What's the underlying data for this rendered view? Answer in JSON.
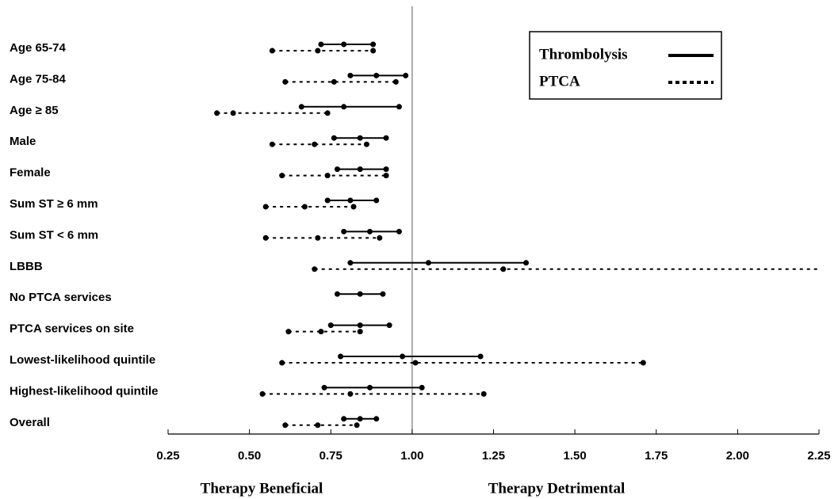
{
  "chart_data": {
    "type": "forest",
    "categories": [
      "Age 65-74",
      "Age 75-84",
      "Age ≥ 85",
      "Male",
      "Female",
      "Sum ST ≥ 6 mm",
      "Sum ST < 6 mm",
      "LBBB",
      "No PTCA services",
      "PTCA services on site",
      "Lowest-likelihood quintile",
      "Highest-likelihood quintile",
      "Overall"
    ],
    "series": [
      {
        "name": "Thrombolysis",
        "color": "#000000",
        "dash": "solid",
        "low": [
          0.72,
          0.81,
          0.66,
          0.76,
          0.77,
          0.74,
          0.79,
          0.81,
          0.77,
          0.75,
          0.78,
          0.73,
          0.79
        ],
        "values": [
          0.79,
          0.89,
          0.79,
          0.84,
          0.84,
          0.81,
          0.87,
          1.05,
          0.84,
          0.84,
          0.97,
          0.87,
          0.84
        ],
        "high": [
          0.88,
          0.98,
          0.96,
          0.92,
          0.92,
          0.89,
          0.96,
          1.35,
          0.91,
          0.93,
          1.21,
          1.03,
          0.89
        ]
      },
      {
        "name": "PTCA",
        "color": "#000000",
        "dash": "dotted",
        "low": [
          0.57,
          0.61,
          0.4,
          0.57,
          0.6,
          0.55,
          0.55,
          0.7,
          null,
          0.62,
          0.6,
          0.54,
          0.61
        ],
        "values": [
          0.71,
          0.76,
          0.45,
          0.7,
          0.74,
          0.67,
          0.71,
          1.28,
          null,
          0.72,
          1.01,
          0.81,
          0.71
        ],
        "high": [
          0.88,
          0.95,
          0.74,
          0.86,
          0.92,
          0.82,
          0.9,
          2.25,
          null,
          0.84,
          1.71,
          1.22,
          0.83
        ]
      }
    ],
    "xlim": [
      0.25,
      2.25
    ],
    "xticks": [
      0.25,
      {
        "value": 0.5,
        "label": "0.50"
      },
      0.75,
      {
        "value": 1.0,
        "label": "1.00"
      },
      1.25,
      {
        "value": 1.5,
        "label": "1.50"
      },
      1.75,
      {
        "value": 2.0,
        "label": "2.00"
      },
      2.25
    ],
    "reference_line": 1.0,
    "annotations": [
      "Therapy Beneficial",
      "Therapy Detrimental"
    ],
    "legend_position": "upper right"
  }
}
